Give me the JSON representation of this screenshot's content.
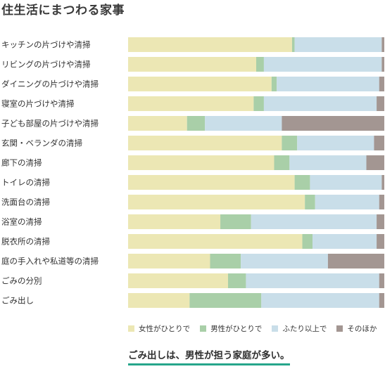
{
  "page": {
    "title": "住生活にまつわる家事"
  },
  "colors": {
    "female": "#ece7b4",
    "male": "#a9cfa8",
    "both": "#c9dee9",
    "other": "#a39692",
    "accent": "#26a68b"
  },
  "chart_data": {
    "type": "bar",
    "stacked": true,
    "orientation": "horizontal",
    "percent": true,
    "xlim": [
      0,
      100
    ],
    "categories": [
      "キッチンの片づけや清掃",
      "リビングの片づけや清掃",
      "ダイニングの片づけや清掃",
      "寝室の片づけや清掃",
      "子ども部屋の片づけや清掃",
      "玄関・ベランダの清掃",
      "廊下の清掃",
      "トイレの清掃",
      "洗面台の清掃",
      "浴室の清掃",
      "脱衣所の清掃",
      "庭の手入れや私道等の清掃",
      "ごみの分別",
      "ごみ出し"
    ],
    "series": [
      {
        "name": "女性がひとりで",
        "color": "#ece7b4",
        "values": [
          64,
          50,
          56,
          49,
          23,
          60,
          57,
          65,
          69,
          36,
          68,
          32,
          39,
          24
        ]
      },
      {
        "name": "男性がひとりで",
        "color": "#a9cfa8",
        "values": [
          1,
          3,
          2,
          4,
          7,
          6,
          6,
          6,
          4,
          12,
          4,
          12,
          7,
          28
        ]
      },
      {
        "name": "ふたり以上で",
        "color": "#c9dee9",
        "values": [
          34,
          46,
          40,
          44,
          30,
          30,
          30,
          28,
          25,
          49,
          25,
          34,
          52,
          46
        ]
      },
      {
        "name": "そのほか",
        "color": "#a39692",
        "values": [
          1,
          1,
          2,
          3,
          40,
          4,
          7,
          1,
          2,
          3,
          3,
          22,
          2,
          2
        ]
      }
    ]
  },
  "note": "ごみ出しは、男性が担う家庭が多い。"
}
